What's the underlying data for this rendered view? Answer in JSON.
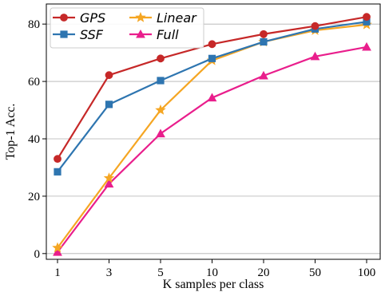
{
  "chart_data": {
    "type": "line",
    "categories": [
      "1",
      "3",
      "5",
      "10",
      "20",
      "50",
      "100"
    ],
    "xlabel": "K samples per class",
    "ylabel": "Top-1 Acc.",
    "ylim": [
      -2,
      87
    ],
    "yticks": [
      0,
      20,
      40,
      60,
      80
    ],
    "grid": "y",
    "legend_position": "top-left",
    "series": [
      {
        "name": "GPS",
        "color": "#c62828",
        "marker": "circle",
        "values": [
          33.0,
          62.2,
          68.0,
          73.0,
          76.5,
          79.3,
          82.5
        ]
      },
      {
        "name": "SSF",
        "color": "#2e75b0",
        "marker": "square",
        "values": [
          28.5,
          52.0,
          60.3,
          68.0,
          73.8,
          78.3,
          80.8
        ]
      },
      {
        "name": "Linear",
        "color": "#f5a623",
        "marker": "star",
        "values": [
          2.0,
          26.3,
          50.0,
          67.3,
          73.8,
          77.8,
          79.8
        ]
      },
      {
        "name": "Full",
        "color": "#e91e8c",
        "marker": "triangle",
        "values": [
          0.5,
          24.3,
          41.8,
          54.3,
          62.0,
          68.7,
          72.0
        ]
      }
    ]
  }
}
